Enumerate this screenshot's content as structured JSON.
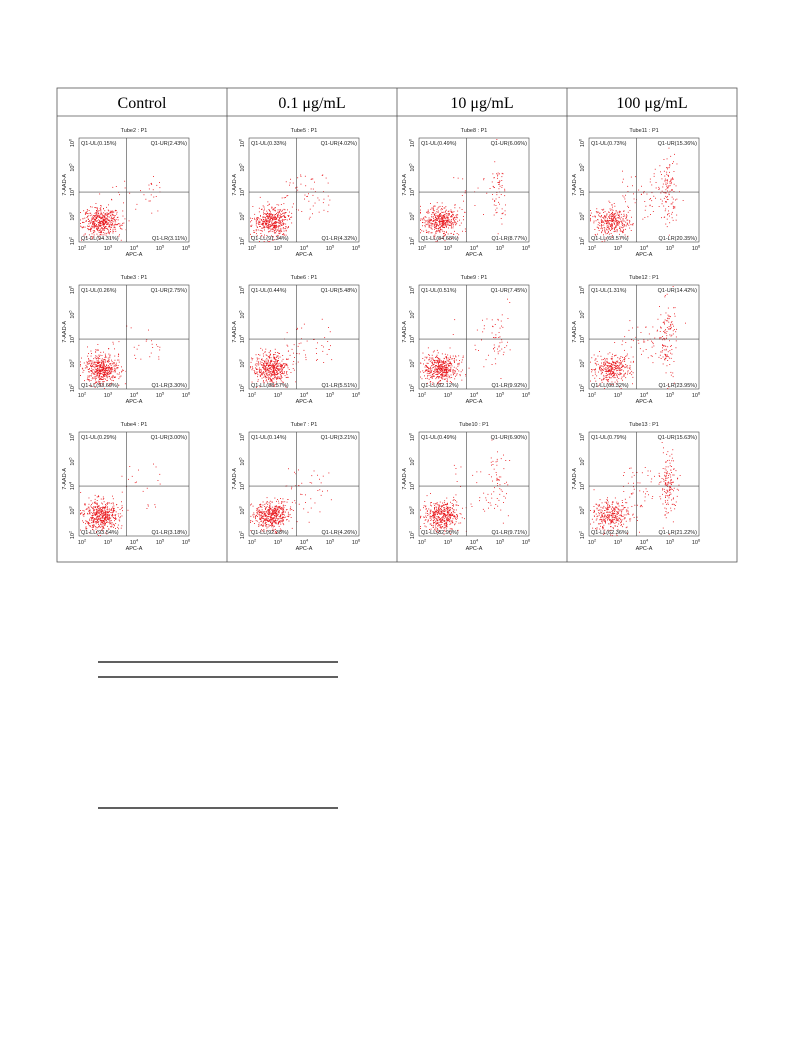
{
  "table": {
    "headers": [
      "Control",
      "0.1 μg/mL",
      "10 μg/mL",
      "100 μg/mL"
    ],
    "x_axis_label": "APC-A",
    "y_axis_label": "7-AAD-A",
    "tick_base": "10",
    "tick_exponents": [
      2,
      3,
      4,
      5,
      6
    ],
    "rows": [
      [
        {
          "title": "Tube2 : P1",
          "ul": "Q1-UL(0.15%)",
          "ur": "Q1-UR(2.43%)",
          "ll": "Q1-LL(94.31%)",
          "lr": "Q1-LR(3.11%)"
        },
        {
          "title": "Tube5 : P1",
          "ul": "Q1-UL(0.33%)",
          "ur": "Q1-UR(4.02%)",
          "ll": "Q1-LL(91.34%)",
          "lr": "Q1-LR(4.32%)"
        },
        {
          "title": "Tube8 : P1",
          "ul": "Q1-UL(0.49%)",
          "ur": "Q1-UR(6.06%)",
          "ll": "Q1-LL(84.68%)",
          "lr": "Q1-LR(8.77%)"
        },
        {
          "title": "Tube11 : P1",
          "ul": "Q1-UL(0.73%)",
          "ur": "Q1-UR(15.36%)",
          "ll": "Q1-LL(63.57%)",
          "lr": "Q1-LR(20.35%)"
        }
      ],
      [
        {
          "title": "Tube3 : P1",
          "ul": "Q1-UL(0.26%)",
          "ur": "Q1-UR(2.75%)",
          "ll": "Q1-LL(93.69%)",
          "lr": "Q1-LR(3.30%)"
        },
        {
          "title": "Tube6 : P1",
          "ul": "Q1-UL(0.44%)",
          "ur": "Q1-UR(5.48%)",
          "ll": "Q1-LL(88.57%)",
          "lr": "Q1-LR(5.51%)"
        },
        {
          "title": "Tube9 : P1",
          "ul": "Q1-UL(0.51%)",
          "ur": "Q1-UR(7.45%)",
          "ll": "Q1-LL(82.12%)",
          "lr": "Q1-LR(9.92%)"
        },
        {
          "title": "Tube12 : P1",
          "ul": "Q1-UL(1.31%)",
          "ur": "Q1-UR(14.42%)",
          "ll": "Q1-LL(60.32%)",
          "lr": "Q1-LR(23.95%)"
        }
      ],
      [
        {
          "title": "Tube4 : P1",
          "ul": "Q1-UL(0.29%)",
          "ur": "Q1-UR(3.00%)",
          "ll": "Q1-LL(93.54%)",
          "lr": "Q1-LR(3.18%)"
        },
        {
          "title": "Tube7 : P1",
          "ul": "Q1-UL(0.14%)",
          "ur": "Q1-UR(3.21%)",
          "ll": "Q1-LL(92.38%)",
          "lr": "Q1-LR(4.26%)"
        },
        {
          "title": "Tube10 : P1",
          "ul": "Q1-UL(0.49%)",
          "ur": "Q1-UR(6.90%)",
          "ll": "Q1-LL(82.90%)",
          "lr": "Q1-LR(9.71%)"
        },
        {
          "title": "Tube13 : P1",
          "ul": "Q1-UL(0.79%)",
          "ur": "Q1-UR(15.63%)",
          "ll": "Q1-LL(62.36%)",
          "lr": "Q1-LR(21.22%)"
        }
      ]
    ]
  }
}
